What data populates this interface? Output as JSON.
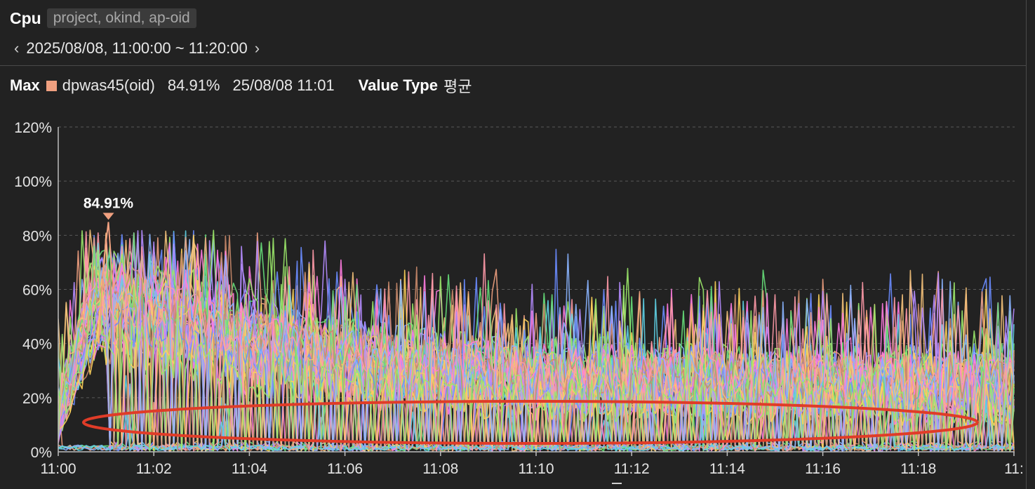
{
  "header": {
    "title": "Cpu",
    "tag": "project, okind, ap-oid"
  },
  "range": {
    "prev_icon": "chevron-left-icon",
    "text": "2025/08/08, 11:00:00 ~ 11:20:00",
    "next_icon": "chevron-right-icon"
  },
  "summary": {
    "max_label": "Max",
    "swatch_color": "#f0a080",
    "name": "dpwas45(oid)",
    "value": "84.91%",
    "time": "25/08/08 11:01",
    "value_type_label": "Value Type",
    "value_type": "평균"
  },
  "chart_data": {
    "type": "line",
    "ylim": [
      0,
      120
    ],
    "yticks": [
      "0%",
      "20%",
      "40%",
      "60%",
      "80%",
      "100%",
      "120%"
    ],
    "xticks": [
      "11:00",
      "11:02",
      "11:04",
      "11:06",
      "11:08",
      "11:10",
      "11:12",
      "11:14",
      "11:16",
      "11:18",
      "11:"
    ],
    "grid": "horizontal dashed",
    "max_marker": {
      "label": "84.91%",
      "x": "11:01",
      "y": 84.91,
      "color": "#f0a080"
    },
    "series_colors": [
      "#f0a080",
      "#6a8cff",
      "#ff7be0",
      "#67e07a",
      "#ffd35a",
      "#b58cff",
      "#5fd2e6",
      "#c98a6a",
      "#f5c27a",
      "#8ab4ff",
      "#ff9aa8",
      "#9be86a"
    ],
    "series_count": 60,
    "profile": {
      "peak_window": [
        "11:00:40",
        "11:02:40"
      ],
      "peak_band": [
        45,
        80
      ],
      "settled_band": [
        20,
        40
      ]
    },
    "annotation": {
      "shape": "ellipse",
      "color": "#e03c28",
      "region": "periodic drops to 0–20% every ~40s"
    }
  }
}
